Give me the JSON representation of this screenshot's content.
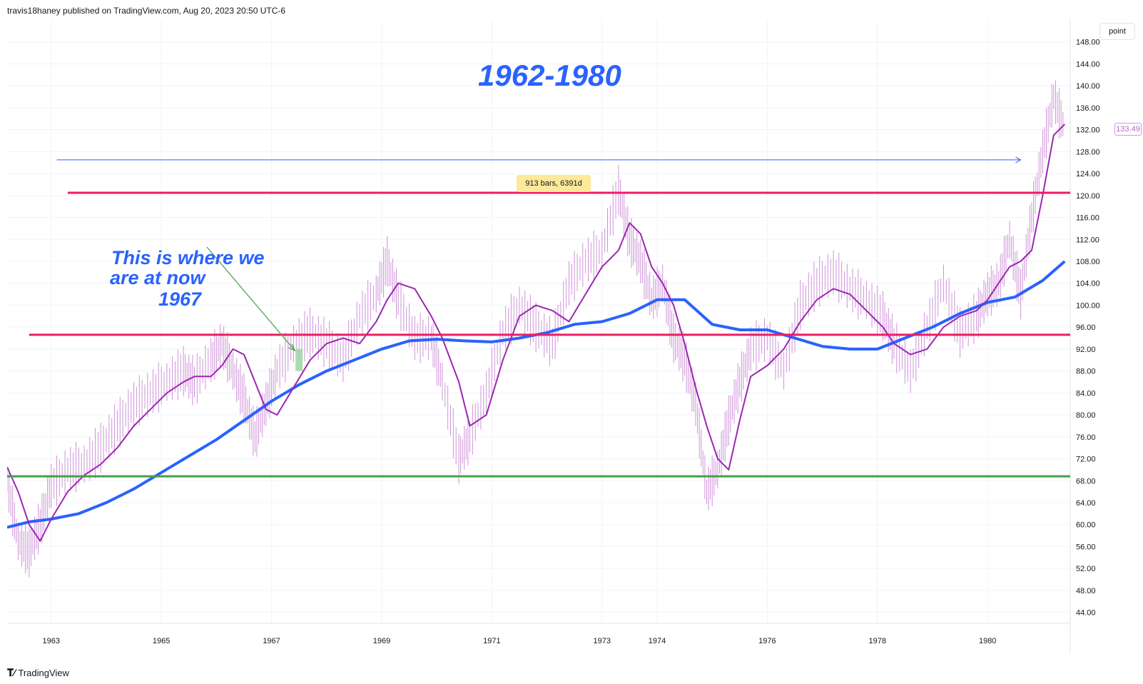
{
  "header": {
    "attribution": "travis18haney published on TradingView.com, Aug 20, 2023 20:50 UTC-6"
  },
  "toolbar": {
    "unit_label": "point"
  },
  "footer": {
    "brand": "TradingView"
  },
  "annotations": {
    "title": "1962-1980",
    "note_lines": [
      "This is where we",
      "are at now",
      "1967"
    ],
    "bars_measure": "913 bars, 6391d",
    "last_price": "133.49"
  },
  "colors": {
    "accent_blue": "#2962ff",
    "price_bars": "#ce93d8",
    "ma_short": "#9c27b0",
    "ma_long": "#2962ff",
    "resistance": "#e91e63",
    "support": "#43a047",
    "arrow": "#43a047"
  },
  "chart_data": {
    "type": "line",
    "title": "1962-1980",
    "y_ticks": [
      "148.00",
      "144.00",
      "140.00",
      "136.00",
      "132.00",
      "128.00",
      "124.00",
      "120.00",
      "116.00",
      "112.00",
      "108.00",
      "104.00",
      "100.00",
      "96.00",
      "92.00",
      "88.00",
      "84.00",
      "80.00",
      "76.00",
      "72.00",
      "68.00",
      "64.00",
      "60.00",
      "56.00",
      "52.00",
      "48.00",
      "44.00"
    ],
    "x_ticks": [
      "1963",
      "1965",
      "1967",
      "1969",
      "1971",
      "1973",
      "1974",
      "1976",
      "1978",
      "1980"
    ],
    "ylim": [
      42,
      152
    ],
    "xlim": [
      1962.2,
      1981.5
    ],
    "grid": true,
    "horizontal_levels": [
      {
        "name": "resistance-upper",
        "value": 120.5,
        "color": "#e91e63",
        "x_start": 1963.3
      },
      {
        "name": "resistance-lower",
        "value": 94.6,
        "color": "#e91e63",
        "x_start": 1962.6
      },
      {
        "name": "support",
        "value": 68.8,
        "color": "#43a047",
        "x_start": 1962.2
      }
    ],
    "measure_arrow": {
      "x_start": 1963.1,
      "x_end": 1980.6,
      "y": 126.5
    },
    "series": [
      {
        "name": "price",
        "style": "bars",
        "color": "#ce93d8",
        "x": [
          1962.2,
          1962.4,
          1962.6,
          1962.8,
          1963.0,
          1963.3,
          1963.6,
          1963.9,
          1964.2,
          1964.5,
          1964.8,
          1965.1,
          1965.4,
          1965.6,
          1965.9,
          1966.1,
          1966.3,
          1966.5,
          1966.7,
          1966.9,
          1967.1,
          1967.4,
          1967.7,
          1968.0,
          1968.3,
          1968.6,
          1968.9,
          1969.1,
          1969.3,
          1969.6,
          1969.9,
          1970.1,
          1970.4,
          1970.6,
          1970.9,
          1971.2,
          1971.5,
          1971.8,
          1972.1,
          1972.4,
          1972.7,
          1973.0,
          1973.3,
          1973.5,
          1973.7,
          1973.9,
          1974.1,
          1974.3,
          1974.5,
          1974.7,
          1974.9,
          1975.1,
          1975.3,
          1975.5,
          1975.7,
          1976.0,
          1976.3,
          1976.6,
          1976.9,
          1977.2,
          1977.5,
          1977.8,
          1978.1,
          1978.3,
          1978.6,
          1978.9,
          1979.2,
          1979.5,
          1979.8,
          1980.0,
          1980.2,
          1980.4,
          1980.6,
          1980.8,
          1981.0,
          1981.2,
          1981.4
        ],
        "values": [
          68,
          57,
          55,
          60,
          67,
          70,
          71,
          74,
          78,
          82,
          84,
          86,
          88,
          86,
          90,
          93,
          88,
          83,
          76,
          82,
          88,
          93,
          95,
          93,
          90,
          98,
          102,
          108,
          101,
          94,
          94,
          86,
          72,
          76,
          84,
          95,
          100,
          96,
          93,
          104,
          108,
          110,
          121,
          112,
          108,
          101,
          104,
          94,
          90,
          82,
          66,
          70,
          79,
          86,
          92,
          94,
          88,
          100,
          104,
          106,
          103,
          101,
          98,
          93,
          88,
          96,
          104,
          95,
          98,
          102,
          104,
          112,
          102,
          116,
          128,
          138,
          132
        ]
      },
      {
        "name": "ma-short",
        "style": "line",
        "color": "#9c27b0",
        "x": [
          1962.2,
          1962.4,
          1962.6,
          1962.8,
          1963.0,
          1963.3,
          1963.6,
          1963.9,
          1964.2,
          1964.5,
          1964.8,
          1965.1,
          1965.4,
          1965.6,
          1965.9,
          1966.1,
          1966.3,
          1966.5,
          1966.7,
          1966.9,
          1967.1,
          1967.4,
          1967.7,
          1968.0,
          1968.3,
          1968.6,
          1968.9,
          1969.1,
          1969.3,
          1969.6,
          1969.9,
          1970.1,
          1970.4,
          1970.6,
          1970.9,
          1971.2,
          1971.5,
          1971.8,
          1972.1,
          1972.4,
          1972.7,
          1973.0,
          1973.3,
          1973.5,
          1973.7,
          1973.9,
          1974.1,
          1974.3,
          1974.5,
          1974.7,
          1974.9,
          1975.1,
          1975.3,
          1975.5,
          1975.7,
          1976.0,
          1976.3,
          1976.6,
          1976.9,
          1977.2,
          1977.5,
          1977.8,
          1978.1,
          1978.3,
          1978.6,
          1978.9,
          1979.2,
          1979.5,
          1979.8,
          1980.0,
          1980.2,
          1980.4,
          1980.6,
          1980.8,
          1981.0,
          1981.2,
          1981.4
        ],
        "values": [
          70.5,
          66,
          60,
          57,
          61,
          66,
          69,
          71,
          74,
          78,
          81,
          84,
          86,
          87,
          87,
          89,
          92,
          91,
          86,
          81,
          80,
          85,
          90,
          93,
          94,
          93,
          97,
          101,
          104,
          103,
          98,
          94,
          86,
          78,
          80,
          90,
          98,
          100,
          99,
          97,
          102,
          107,
          110,
          115,
          113,
          107,
          104,
          100,
          93,
          85,
          78,
          72,
          70,
          79,
          87,
          89,
          92,
          97,
          101,
          103,
          102,
          99,
          96,
          93,
          91,
          92,
          96,
          98,
          99,
          101,
          104,
          107,
          108,
          110,
          120,
          131,
          133
        ]
      },
      {
        "name": "ma-long",
        "style": "line",
        "color": "#2962ff",
        "x": [
          1962.2,
          1962.6,
          1963.0,
          1963.5,
          1964.0,
          1964.5,
          1965.0,
          1965.5,
          1966.0,
          1966.5,
          1967.0,
          1967.5,
          1968.0,
          1968.5,
          1969.0,
          1969.5,
          1970.0,
          1970.5,
          1971.0,
          1971.5,
          1972.0,
          1972.5,
          1973.0,
          1973.5,
          1974.0,
          1974.5,
          1975.0,
          1975.5,
          1976.0,
          1976.5,
          1977.0,
          1977.5,
          1978.0,
          1978.5,
          1979.0,
          1979.5,
          1980.0,
          1980.5,
          1981.0,
          1981.4
        ],
        "values": [
          59.5,
          60.5,
          61,
          62,
          64,
          66.5,
          69.5,
          72.5,
          75.5,
          79,
          82.5,
          85.5,
          88,
          90,
          92,
          93.5,
          93.8,
          93.5,
          93.3,
          94,
          95,
          96.5,
          97,
          98.5,
          101,
          101,
          96.5,
          95.5,
          95.5,
          94,
          92.5,
          92,
          92,
          94,
          96,
          98.5,
          100.5,
          101.5,
          104.5,
          108
        ]
      }
    ],
    "highlight_candle": {
      "x": 1967.5,
      "open": 88,
      "close": 92
    }
  }
}
